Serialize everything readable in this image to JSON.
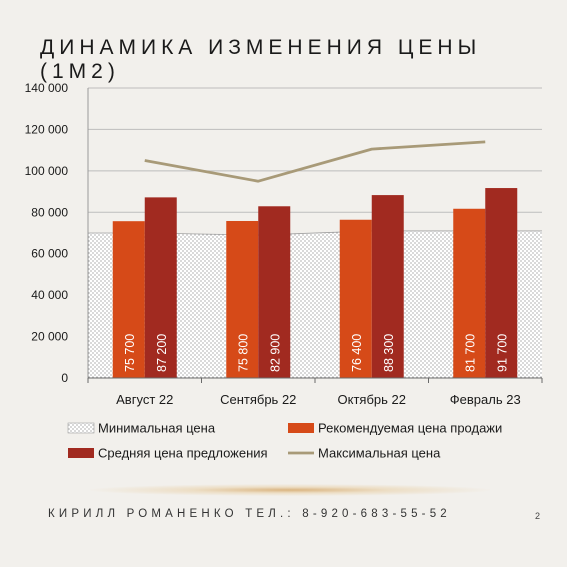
{
  "title": "ДИНАМИКА ИЗМЕНЕНИЯ ЦЕНЫ (1М2)",
  "footer": "КИРИЛЛ РОМАНЕНКО ТЕЛ.: 8-920-683-55-52",
  "page_number": "2",
  "colors": {
    "min_pattern": "#8a8a8a",
    "recommended": "#d64a18",
    "average": "#a12a20",
    "max_line": "#a89a78",
    "grid": "#bdbdbd",
    "text": "#1a1a1a"
  },
  "chart_data": {
    "type": "bar",
    "categories": [
      "Август 22",
      "Сентябрь 22",
      "Октябрь 22",
      "Февраль 23"
    ],
    "ylim": [
      0,
      140000
    ],
    "yticks": [
      0,
      20000,
      40000,
      60000,
      80000,
      100000,
      120000,
      140000
    ],
    "ytick_labels": [
      "0",
      "20 000",
      "40 000",
      "60 000",
      "80 000",
      "100 000",
      "120 000",
      "140 000"
    ],
    "grid": true,
    "legend_position": "bottom",
    "series": [
      {
        "name": "Минимальная цена",
        "type": "area",
        "values": [
          70000,
          69000,
          71000,
          71000
        ]
      },
      {
        "name": "Рекомендуемая цена продажи",
        "type": "bar",
        "values": [
          75700,
          75800,
          76400,
          81700
        ],
        "labels": [
          "75 700",
          "75 800",
          "76 400",
          "81 700"
        ]
      },
      {
        "name": "Средняя цена предложения",
        "type": "bar",
        "values": [
          87200,
          82900,
          88300,
          91700
        ],
        "labels": [
          "87 200",
          "82 900",
          "88 300",
          "91 700"
        ]
      },
      {
        "name": "Максимальная цена",
        "type": "line",
        "values": [
          105000,
          95000,
          110500,
          114000
        ]
      }
    ]
  }
}
